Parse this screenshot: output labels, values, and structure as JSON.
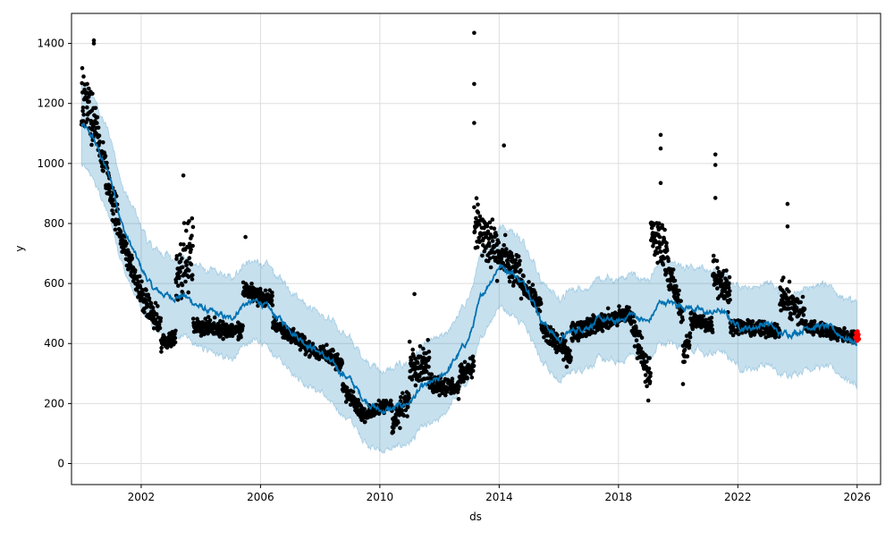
{
  "chart_data": {
    "type": "scatter",
    "title": "",
    "xlabel": "ds",
    "ylabel": "y",
    "xlim": [
      "1999-09-01",
      "2026-10-15"
    ],
    "ylim": [
      -70,
      1500
    ],
    "grid": true,
    "x_ticks": [
      "2002",
      "2006",
      "2010",
      "2014",
      "2018",
      "2022",
      "2026"
    ],
    "y_ticks": [
      "0",
      "200",
      "400",
      "600",
      "800",
      "1000",
      "1200",
      "1400"
    ],
    "colors": {
      "observed": "#000000",
      "forecast_line": "#0072B2",
      "uncertainty_band": "#0072B2",
      "recent_points": "#FF0000",
      "grid": "#DDDDDD"
    },
    "series": [
      {
        "kind": "forecast-line",
        "x": [
          "2000-01-01",
          "2000-06-01",
          "2001-01-01",
          "2001-06-01",
          "2002-01-01",
          "2002-06-01",
          "2003-01-01",
          "2003-06-01",
          "2004-01-01",
          "2004-06-01",
          "2005-01-01",
          "2005-06-01",
          "2006-01-01",
          "2006-06-01",
          "2007-01-01",
          "2007-06-01",
          "2008-01-01",
          "2008-06-01",
          "2009-01-01",
          "2009-06-01",
          "2010-01-01",
          "2010-06-01",
          "2011-01-01",
          "2011-06-01",
          "2012-01-01",
          "2012-06-01",
          "2013-01-01",
          "2013-06-01",
          "2014-01-01",
          "2014-06-01",
          "2015-01-01",
          "2015-06-01",
          "2016-01-01",
          "2016-06-01",
          "2017-01-01",
          "2017-06-01",
          "2018-01-01",
          "2018-06-01",
          "2019-01-01",
          "2019-06-01",
          "2020-01-01",
          "2020-06-01",
          "2021-01-01",
          "2021-06-01",
          "2022-01-01",
          "2022-06-01",
          "2023-01-01",
          "2023-06-01",
          "2024-01-01",
          "2024-06-01",
          "2025-01-01",
          "2025-06-01",
          "2026-01-01"
        ],
        "y": [
          1130,
          1080,
          940,
          780,
          650,
          580,
          555,
          560,
          520,
          500,
          480,
          530,
          540,
          500,
          450,
          410,
          370,
          330,
          280,
          220,
          175,
          180,
          205,
          250,
          280,
          330,
          420,
          560,
          660,
          640,
          580,
          480,
          410,
          440,
          460,
          480,
          470,
          500,
          470,
          540,
          530,
          520,
          500,
          510,
          460,
          450,
          470,
          430,
          440,
          460,
          455,
          430,
          400
        ]
      },
      {
        "kind": "uncertainty-band",
        "band_width": 135
      },
      {
        "kind": "observed",
        "segments": [
          {
            "start": "2000-01-01",
            "end": "2000-07-01",
            "y_start": 1200,
            "y_end": 1150,
            "spread": 140
          },
          {
            "start": "2000-07-01",
            "end": "2001-04-01",
            "y_start": 1100,
            "y_end": 800,
            "spread": 90
          },
          {
            "start": "2001-04-01",
            "end": "2002-01-01",
            "y_start": 780,
            "y_end": 560,
            "spread": 60
          },
          {
            "start": "2002-01-01",
            "end": "2002-09-01",
            "y_start": 560,
            "y_end": 450,
            "spread": 60
          },
          {
            "start": "2002-09-01",
            "end": "2003-03-01",
            "y_start": 400,
            "y_end": 420,
            "spread": 40
          },
          {
            "start": "2003-03-01",
            "end": "2003-10-01",
            "y_start": 650,
            "y_end": 700,
            "spread": 140
          },
          {
            "start": "2003-10-01",
            "end": "2005-06-01",
            "y_start": 460,
            "y_end": 440,
            "spread": 35
          },
          {
            "start": "2005-06-01",
            "end": "2006-06-01",
            "y_start": 580,
            "y_end": 540,
            "spread": 40
          },
          {
            "start": "2006-06-01",
            "end": "2008-01-01",
            "y_start": 470,
            "y_end": 360,
            "spread": 30
          },
          {
            "start": "2008-01-01",
            "end": "2008-10-01",
            "y_start": 380,
            "y_end": 330,
            "spread": 40
          },
          {
            "start": "2008-10-01",
            "end": "2009-06-01",
            "y_start": 250,
            "y_end": 170,
            "spread": 35
          },
          {
            "start": "2009-06-01",
            "end": "2010-06-01",
            "y_start": 160,
            "y_end": 200,
            "spread": 30
          },
          {
            "start": "2010-06-01",
            "end": "2011-01-01",
            "y_start": 130,
            "y_end": 220,
            "spread": 60
          },
          {
            "start": "2011-01-01",
            "end": "2011-09-01",
            "y_start": 340,
            "y_end": 330,
            "spread": 80
          },
          {
            "start": "2011-09-01",
            "end": "2012-09-01",
            "y_start": 270,
            "y_end": 250,
            "spread": 40
          },
          {
            "start": "2012-09-01",
            "end": "2013-03-01",
            "y_start": 290,
            "y_end": 330,
            "spread": 40
          },
          {
            "start": "2013-03-01",
            "end": "2013-10-01",
            "y_start": 800,
            "y_end": 720,
            "spread": 130
          },
          {
            "start": "2013-10-01",
            "end": "2014-10-01",
            "y_start": 720,
            "y_end": 620,
            "spread": 90
          },
          {
            "start": "2014-10-01",
            "end": "2015-06-01",
            "y_start": 600,
            "y_end": 520,
            "spread": 40
          },
          {
            "start": "2015-06-01",
            "end": "2016-06-01",
            "y_start": 450,
            "y_end": 360,
            "spread": 50
          },
          {
            "start": "2016-06-01",
            "end": "2018-06-01",
            "y_start": 440,
            "y_end": 500,
            "spread": 40
          },
          {
            "start": "2018-06-01",
            "end": "2019-02-01",
            "y_start": 480,
            "y_end": 280,
            "spread": 70
          },
          {
            "start": "2019-02-01",
            "end": "2019-09-01",
            "y_start": 760,
            "y_end": 700,
            "spread": 110
          },
          {
            "start": "2019-09-01",
            "end": "2020-03-01",
            "y_start": 640,
            "y_end": 500,
            "spread": 60
          },
          {
            "start": "2020-03-01",
            "end": "2020-06-01",
            "y_start": 360,
            "y_end": 420,
            "spread": 60
          },
          {
            "start": "2020-06-01",
            "end": "2021-03-01",
            "y_start": 480,
            "y_end": 460,
            "spread": 40
          },
          {
            "start": "2021-03-01",
            "end": "2021-10-01",
            "y_start": 650,
            "y_end": 560,
            "spread": 80
          },
          {
            "start": "2021-10-01",
            "end": "2023-06-01",
            "y_start": 460,
            "y_end": 440,
            "spread": 30
          },
          {
            "start": "2023-06-01",
            "end": "2024-04-01",
            "y_start": 560,
            "y_end": 490,
            "spread": 70
          },
          {
            "start": "2024-04-01",
            "end": "2025-12-01",
            "y_start": 460,
            "y_end": 420,
            "spread": 30
          }
        ],
        "outliers": [
          {
            "x": "2000-06-01",
            "y": 1410
          },
          {
            "x": "2000-06-01",
            "y": 1400
          },
          {
            "x": "2003-06-01",
            "y": 960
          },
          {
            "x": "2005-07-01",
            "y": 755
          },
          {
            "x": "2011-03-01",
            "y": 565
          },
          {
            "x": "2013-03-01",
            "y": 1435
          },
          {
            "x": "2013-03-01",
            "y": 1265
          },
          {
            "x": "2013-03-01",
            "y": 1135
          },
          {
            "x": "2014-03-01",
            "y": 1060
          },
          {
            "x": "2019-06-01",
            "y": 1095
          },
          {
            "x": "2019-06-01",
            "y": 1050
          },
          {
            "x": "2019-06-01",
            "y": 935
          },
          {
            "x": "2019-01-01",
            "y": 210
          },
          {
            "x": "2021-04-01",
            "y": 1030
          },
          {
            "x": "2021-04-01",
            "y": 995
          },
          {
            "x": "2021-04-01",
            "y": 885
          },
          {
            "x": "2023-09-01",
            "y": 865
          },
          {
            "x": "2023-09-01",
            "y": 790
          },
          {
            "x": "2020-03-01",
            "y": 265
          }
        ]
      },
      {
        "kind": "recent-points",
        "x": [
          "2025-12-10",
          "2025-12-20",
          "2026-01-01",
          "2026-01-05",
          "2026-01-10",
          "2026-01-15",
          "2026-01-20"
        ],
        "y": [
          420,
          435,
          410,
          440,
          425,
          430,
          415
        ]
      }
    ]
  }
}
